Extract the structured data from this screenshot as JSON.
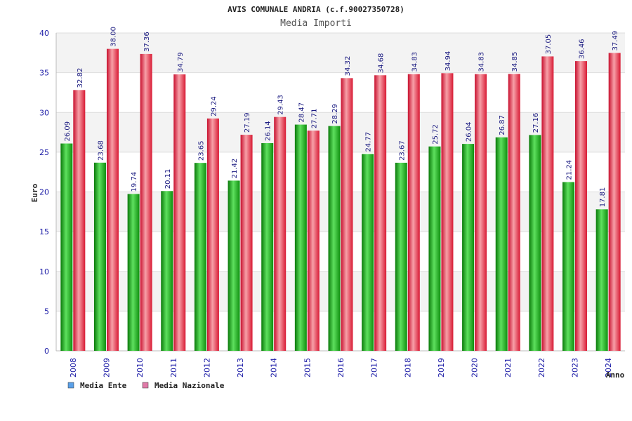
{
  "chart_data": {
    "type": "bar",
    "title": "AVIS COMUNALE ANDRIA (c.f.90027350728)",
    "subtitle": "Media Importi",
    "xlabel": "Anno",
    "ylabel": "Euro",
    "ylim": [
      0,
      40
    ],
    "yticks": [
      0,
      5,
      10,
      15,
      20,
      25,
      30,
      35,
      40
    ],
    "categories": [
      "2008",
      "2009",
      "2010",
      "2011",
      "2012",
      "2013",
      "2014",
      "2015",
      "2016",
      "2017",
      "2018",
      "2019",
      "2020",
      "2021",
      "2022",
      "2023",
      "2024"
    ],
    "series": [
      {
        "name": "Media Ente",
        "color": "#22bb22",
        "legend_color": "#5aa0e8",
        "values": [
          26.09,
          23.68,
          19.74,
          20.11,
          23.65,
          21.42,
          26.14,
          28.47,
          28.29,
          24.77,
          23.67,
          25.72,
          26.04,
          26.87,
          27.16,
          21.24,
          17.81
        ]
      },
      {
        "name": "Media Nazionale",
        "color": "#e8344a",
        "legend_color": "#e07aa8",
        "values": [
          32.82,
          38.0,
          37.36,
          34.79,
          29.24,
          27.19,
          29.43,
          27.71,
          34.32,
          34.68,
          34.83,
          34.94,
          34.83,
          34.85,
          37.05,
          36.46,
          37.49
        ]
      }
    ],
    "data_labels": [
      [
        "26.09",
        "23.68",
        "19.74",
        "20.11",
        "23.65",
        "21.42",
        "26.14",
        "28.47",
        "28.29",
        "24.77",
        "23.67",
        "25.72",
        "26.04",
        "26.87",
        "27.16",
        "21.24",
        "17.81"
      ],
      [
        "32.82",
        "38.00",
        "37.36",
        "34.79",
        "29.24",
        "27.19",
        "29.43",
        "27.71",
        "34.32",
        "34.68",
        "34.83",
        "34.94",
        "34.83",
        "34.85",
        "37.05",
        "36.46",
        "37.49"
      ]
    ],
    "grid": true,
    "legend_position": "bottom-left"
  }
}
